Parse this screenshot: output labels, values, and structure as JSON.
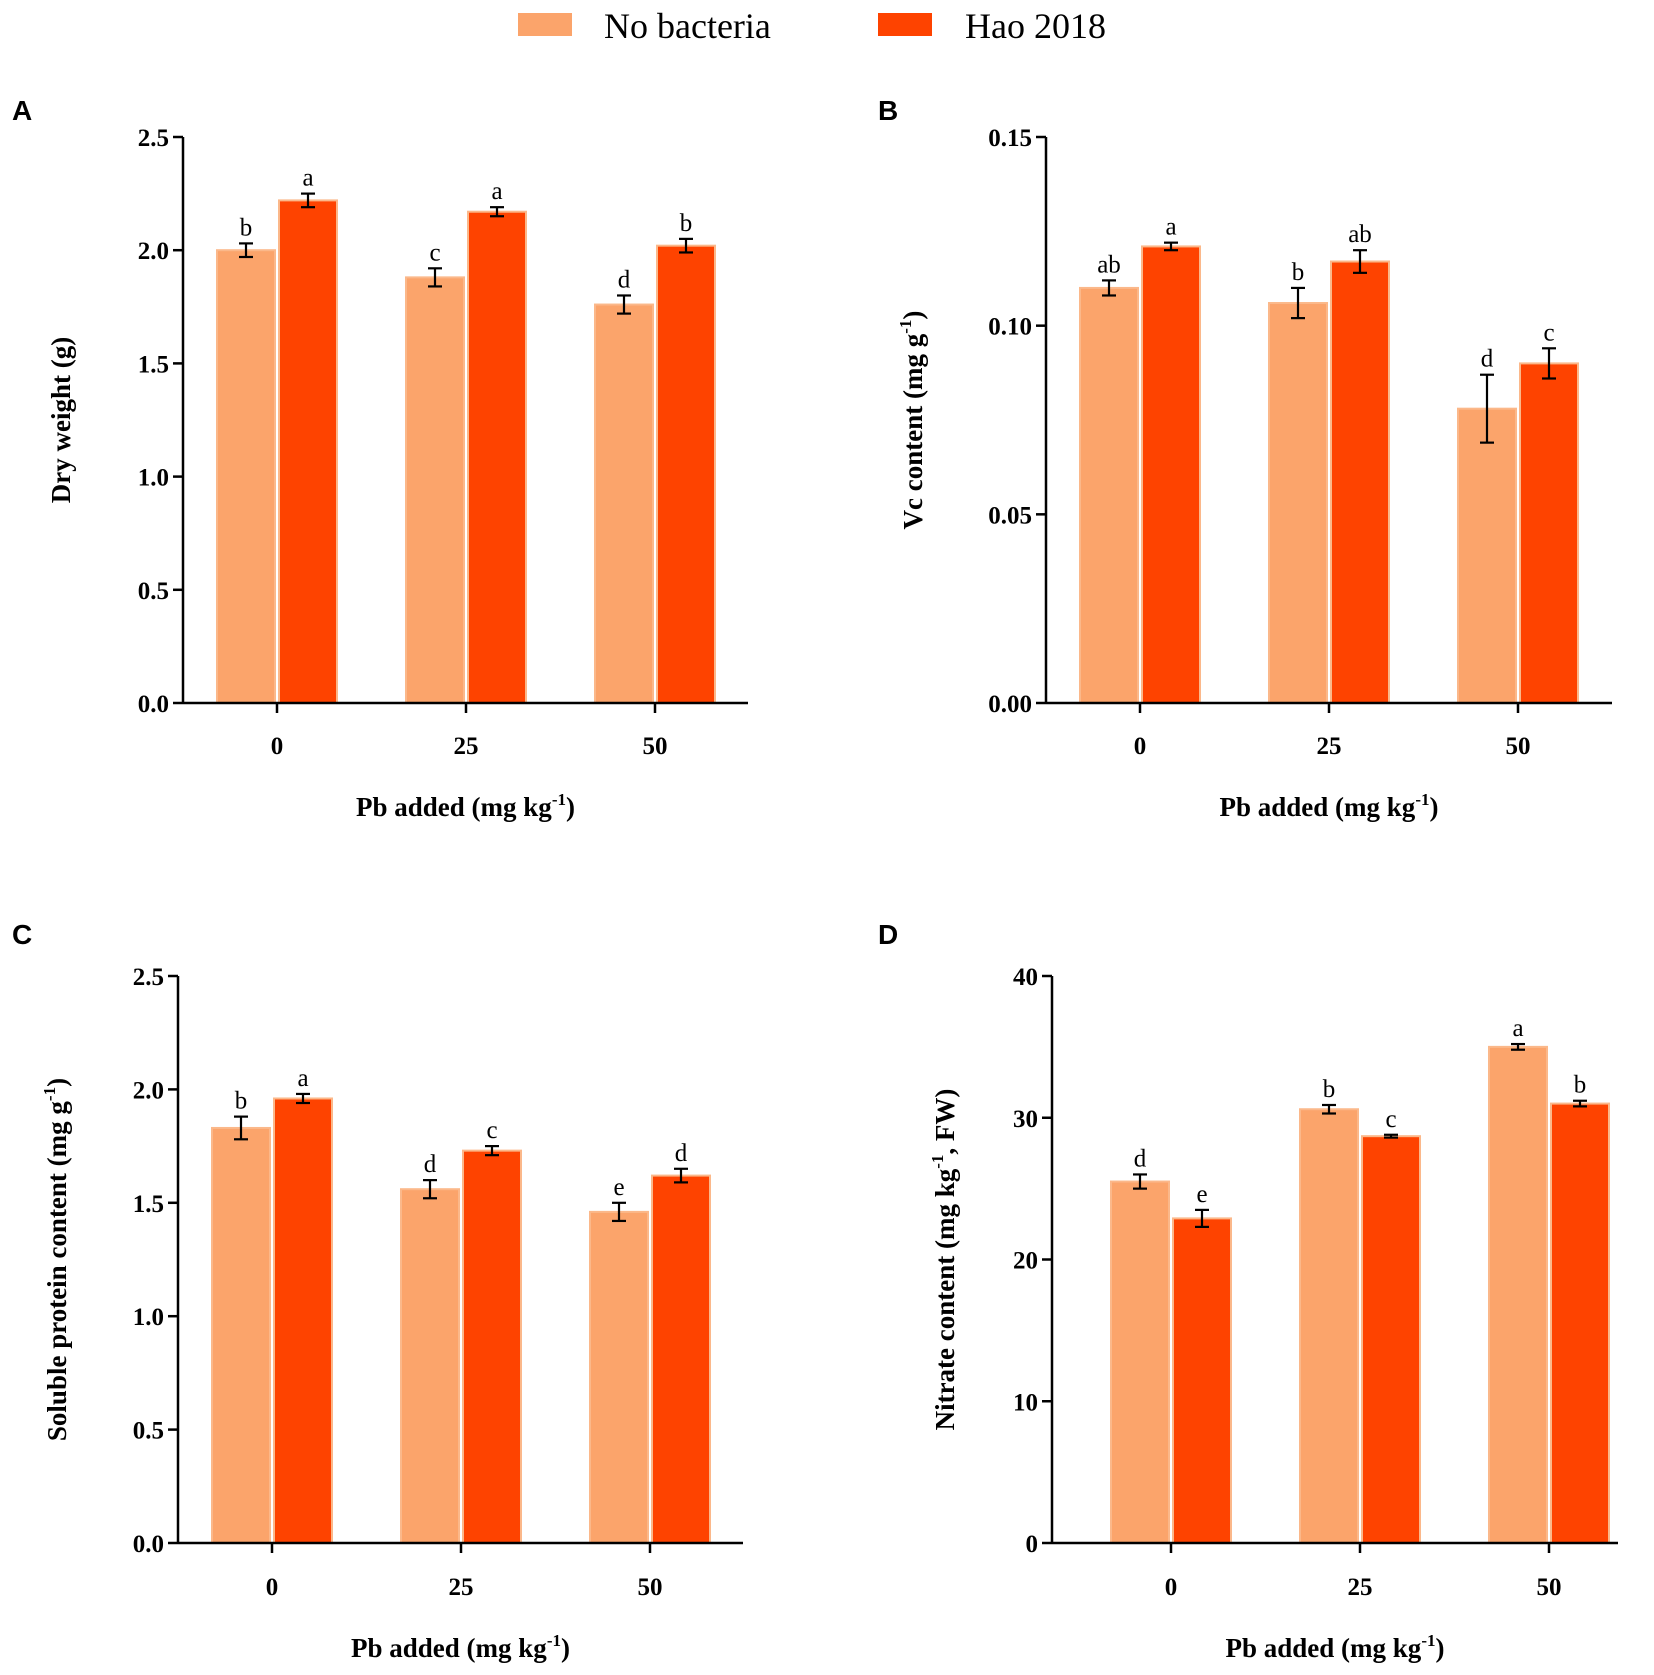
{
  "legend": {
    "entries": [
      {
        "name": "No bacteria",
        "color": "#fba46b"
      },
      {
        "name": "Hao 2018",
        "color": "#fe4300"
      }
    ]
  },
  "chart_data": [
    {
      "panel": "A",
      "type": "bar",
      "categories": [
        "0",
        "25",
        "50"
      ],
      "xlabel": "Pb added (mg kg",
      "xlabel_sup": "-1",
      "xlabel_end": ")",
      "ylabel": "Dry weight (g)",
      "ylim": [
        0,
        2.5
      ],
      "yticks": [
        "0.0",
        "0.5",
        "1.0",
        "1.5",
        "2.0",
        "2.5"
      ],
      "series": [
        {
          "name": "No bacteria",
          "values": [
            2.0,
            1.88,
            1.76
          ],
          "errors": [
            0.03,
            0.04,
            0.04
          ],
          "letters": [
            "b",
            "c",
            "d"
          ]
        },
        {
          "name": "Hao 2018",
          "values": [
            2.22,
            2.17,
            2.02
          ],
          "errors": [
            0.03,
            0.02,
            0.03
          ],
          "letters": [
            "a",
            "a",
            "b"
          ]
        }
      ]
    },
    {
      "panel": "B",
      "type": "bar",
      "categories": [
        "0",
        "25",
        "50"
      ],
      "xlabel": "Pb added (mg kg",
      "xlabel_sup": "-1",
      "xlabel_end": ")",
      "ylabel": "Vc content (mg g",
      "ylabel_sup": "-1",
      "ylabel_end": ")",
      "ylim": [
        0,
        0.15
      ],
      "yticks": [
        "0.00",
        "0.05",
        "0.10",
        "0.15"
      ],
      "series": [
        {
          "name": "No bacteria",
          "values": [
            0.11,
            0.106,
            0.078
          ],
          "errors": [
            0.002,
            0.004,
            0.009
          ],
          "letters": [
            "ab",
            "b",
            "d"
          ]
        },
        {
          "name": "Hao 2018",
          "values": [
            0.121,
            0.117,
            0.09
          ],
          "errors": [
            0.001,
            0.003,
            0.004
          ],
          "letters": [
            "a",
            "ab",
            "c"
          ]
        }
      ]
    },
    {
      "panel": "C",
      "type": "bar",
      "categories": [
        "0",
        "25",
        "50"
      ],
      "xlabel": "Pb added (mg kg",
      "xlabel_sup": "-1",
      "xlabel_end": ")",
      "ylabel": "Soluble protein content (mg g",
      "ylabel_sup": "-1",
      "ylabel_end": ")",
      "ylim": [
        0,
        2.5
      ],
      "yticks": [
        "0.0",
        "0.5",
        "1.0",
        "1.5",
        "2.0",
        "2.5"
      ],
      "series": [
        {
          "name": "No bacteria",
          "values": [
            1.83,
            1.56,
            1.46
          ],
          "errors": [
            0.05,
            0.04,
            0.04
          ],
          "letters": [
            "b",
            "d",
            "e"
          ]
        },
        {
          "name": "Hao 2018",
          "values": [
            1.96,
            1.73,
            1.62
          ],
          "errors": [
            0.02,
            0.02,
            0.03
          ],
          "letters": [
            "a",
            "c",
            "d"
          ]
        }
      ]
    },
    {
      "panel": "D",
      "type": "bar",
      "categories": [
        "0",
        "25",
        "50"
      ],
      "xlabel": "Pb added (mg kg",
      "xlabel_sup": "-1",
      "xlabel_end": ")",
      "ylabel": "Nitrate content (mg kg",
      "ylabel_sup": "-1",
      "ylabel_end": ", FW)",
      "ylim": [
        0,
        40
      ],
      "yticks": [
        "0",
        "10",
        "20",
        "30",
        "40"
      ],
      "series": [
        {
          "name": "No bacteria",
          "values": [
            25.5,
            30.6,
            35.0
          ],
          "errors": [
            0.5,
            0.3,
            0.2
          ],
          "letters": [
            "d",
            "b",
            "a"
          ]
        },
        {
          "name": "Hao 2018",
          "values": [
            22.9,
            28.7,
            31.0
          ],
          "errors": [
            0.6,
            0.1,
            0.2
          ],
          "letters": [
            "e",
            "c",
            "b"
          ]
        }
      ]
    }
  ]
}
